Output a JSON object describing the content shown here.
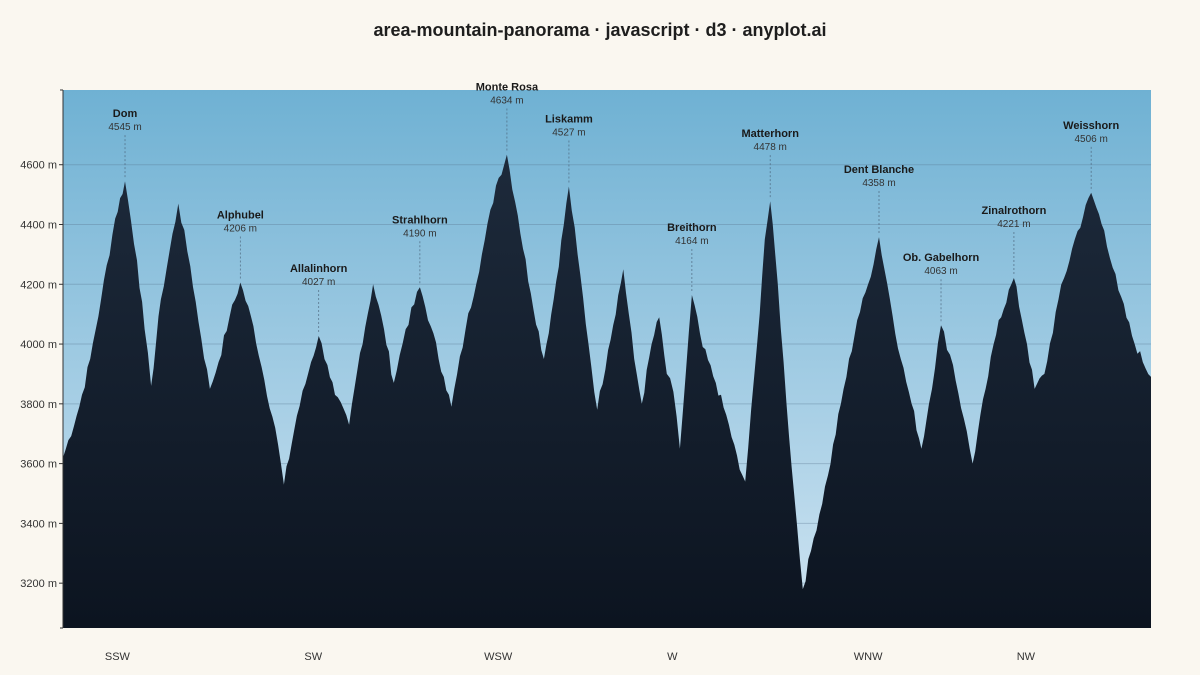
{
  "title": "area-mountain-panorama · javascript · d3 · anyplot.ai",
  "chart_data": {
    "type": "area",
    "title": "area-mountain-panorama · javascript · d3 · anyplot.ai",
    "ylim": [
      3050,
      4850
    ],
    "y_ticks": [
      3200,
      3400,
      3600,
      3800,
      4000,
      4200,
      4400,
      4600
    ],
    "y_tick_suffix": " m",
    "grid": true,
    "directions": [
      {
        "label": "SSW",
        "x": 5
      },
      {
        "label": "SW",
        "x": 23
      },
      {
        "label": "WSW",
        "x": 40
      },
      {
        "label": "W",
        "x": 56
      },
      {
        "label": "WNW",
        "x": 74
      },
      {
        "label": "NW",
        "x": 88.5
      }
    ],
    "peaks": [
      {
        "name": "Dom",
        "elevation": 4545,
        "elevation_label": "4545 m",
        "x": 5.7
      },
      {
        "name": "Alphubel",
        "elevation": 4206,
        "elevation_label": "4206 m",
        "x": 16.3
      },
      {
        "name": "Allalinhorn",
        "elevation": 4027,
        "elevation_label": "4027 m",
        "x": 23.5
      },
      {
        "name": "Strahlhorn",
        "elevation": 4190,
        "elevation_label": "4190 m",
        "x": 32.8
      },
      {
        "name": "Monte Rosa",
        "elevation": 4634,
        "elevation_label": "4634 m",
        "x": 40.8
      },
      {
        "name": "Liskamm",
        "elevation": 4527,
        "elevation_label": "4527 m",
        "x": 46.5
      },
      {
        "name": "Breithorn",
        "elevation": 4164,
        "elevation_label": "4164 m",
        "x": 57.8
      },
      {
        "name": "Matterhorn",
        "elevation": 4478,
        "elevation_label": "4478 m",
        "x": 65.0
      },
      {
        "name": "Dent Blanche",
        "elevation": 4358,
        "elevation_label": "4358 m",
        "x": 75.0
      },
      {
        "name": "Ob. Gabelhorn",
        "elevation": 4063,
        "elevation_label": "4063 m",
        "x": 80.7
      },
      {
        "name": "Zinalrothorn",
        "elevation": 4221,
        "elevation_label": "4221 m",
        "x": 87.4
      },
      {
        "name": "Weisshorn",
        "elevation": 4506,
        "elevation_label": "4506 m",
        "x": 94.5
      }
    ],
    "ridge": [
      [
        0,
        3620
      ],
      [
        1.5,
        3790
      ],
      [
        2.5,
        3950
      ],
      [
        3.5,
        4150
      ],
      [
        4.8,
        4420
      ],
      [
        5.7,
        4545
      ],
      [
        6.8,
        4280
      ],
      [
        7.5,
        4050
      ],
      [
        8.1,
        3860
      ],
      [
        9.0,
        4150
      ],
      [
        10.6,
        4470
      ],
      [
        11.7,
        4260
      ],
      [
        12.7,
        4020
      ],
      [
        13.5,
        3850
      ],
      [
        14.3,
        3940
      ],
      [
        15.3,
        4090
      ],
      [
        16.3,
        4206
      ],
      [
        17.5,
        4060
      ],
      [
        18.5,
        3880
      ],
      [
        19.5,
        3720
      ],
      [
        20.3,
        3530
      ],
      [
        21.5,
        3760
      ],
      [
        22.8,
        3940
      ],
      [
        23.5,
        4027
      ],
      [
        24.3,
        3930
      ],
      [
        25.0,
        3830
      ],
      [
        26.3,
        3730
      ],
      [
        27.3,
        3970
      ],
      [
        28.5,
        4200
      ],
      [
        29.5,
        4050
      ],
      [
        30.4,
        3870
      ],
      [
        31.5,
        4050
      ],
      [
        32.8,
        4190
      ],
      [
        33.8,
        4060
      ],
      [
        35.0,
        3890
      ],
      [
        35.7,
        3790
      ],
      [
        37.0,
        4050
      ],
      [
        38.5,
        4300
      ],
      [
        39.8,
        4530
      ],
      [
        40.8,
        4634
      ],
      [
        41.8,
        4430
      ],
      [
        43.0,
        4170
      ],
      [
        44.2,
        3950
      ],
      [
        45.1,
        4150
      ],
      [
        46.5,
        4527
      ],
      [
        47.3,
        4300
      ],
      [
        48.3,
        4000
      ],
      [
        49.1,
        3780
      ],
      [
        50.1,
        3980
      ],
      [
        51.5,
        4250
      ],
      [
        52.5,
        3950
      ],
      [
        53.2,
        3800
      ],
      [
        54.1,
        4000
      ],
      [
        54.8,
        4090
      ],
      [
        55.5,
        3900
      ],
      [
        56.1,
        3840
      ],
      [
        56.7,
        3650
      ],
      [
        57.8,
        4164
      ],
      [
        58.8,
        3990
      ],
      [
        60.0,
        3870
      ],
      [
        61.2,
        3730
      ],
      [
        62.2,
        3580
      ],
      [
        62.7,
        3540
      ],
      [
        63.8,
        4000
      ],
      [
        64.5,
        4350
      ],
      [
        65.0,
        4478
      ],
      [
        65.7,
        4200
      ],
      [
        66.5,
        3800
      ],
      [
        67.2,
        3500
      ],
      [
        68.0,
        3180
      ],
      [
        69.0,
        3350
      ],
      [
        70.3,
        3560
      ],
      [
        71.5,
        3800
      ],
      [
        73.0,
        4080
      ],
      [
        74.0,
        4200
      ],
      [
        75.0,
        4358
      ],
      [
        76.0,
        4150
      ],
      [
        77.0,
        3950
      ],
      [
        78.0,
        3800
      ],
      [
        78.9,
        3650
      ],
      [
        79.6,
        3800
      ],
      [
        80.7,
        4063
      ],
      [
        81.8,
        3930
      ],
      [
        82.8,
        3750
      ],
      [
        83.6,
        3600
      ],
      [
        84.8,
        3850
      ],
      [
        86.0,
        4080
      ],
      [
        87.4,
        4221
      ],
      [
        88.6,
        4000
      ],
      [
        89.3,
        3850
      ],
      [
        90.2,
        3900
      ],
      [
        91.5,
        4150
      ],
      [
        93.0,
        4350
      ],
      [
        94.5,
        4506
      ],
      [
        95.7,
        4380
      ],
      [
        97.0,
        4180
      ],
      [
        98.5,
        4000
      ],
      [
        100,
        3890
      ]
    ]
  },
  "colors": {
    "sky_top": "#6fb1d3",
    "sky_bottom": "#cfe4f2",
    "mountain_top": "#1d2a3b",
    "mountain_bottom": "#0c1420",
    "label": "#1a1a1a"
  }
}
